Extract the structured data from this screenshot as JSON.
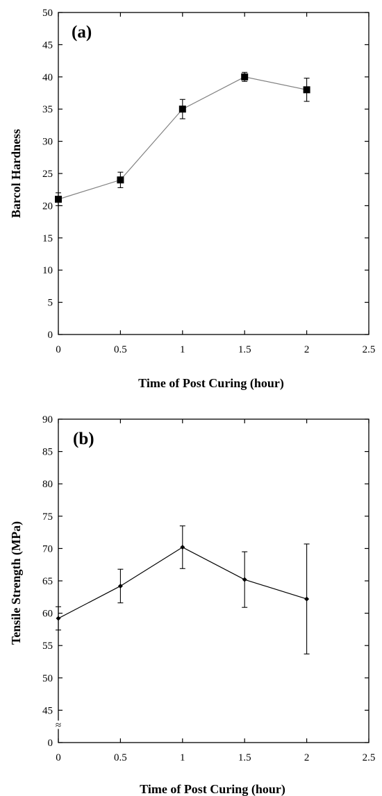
{
  "chart_data": [
    {
      "type": "line",
      "panel_label": "(a)",
      "xlabel": "Time of Post Curing (hour)",
      "ylabel": "Barcol Hardness",
      "xlim": [
        0,
        2.5
      ],
      "ylim": [
        0,
        50
      ],
      "x_ticks": [
        "0",
        "0.5",
        "1",
        "1.5",
        "2",
        "2.5"
      ],
      "y_ticks": [
        "0",
        "5",
        "10",
        "15",
        "20",
        "25",
        "30",
        "35",
        "40",
        "45",
        "50"
      ],
      "grid": false,
      "marker": "square",
      "line_color": "#808080",
      "marker_color": "#000000",
      "series": [
        {
          "x": [
            0,
            0.5,
            1,
            1.5,
            2
          ],
          "y": [
            21,
            24,
            35,
            40,
            38
          ],
          "err": [
            1.0,
            1.2,
            1.5,
            0.7,
            1.8
          ]
        }
      ]
    },
    {
      "type": "line",
      "panel_label": "(b)",
      "xlabel": "Time of Post Curing (hour)",
      "ylabel": "Tensile Strength (MPa)",
      "xlim": [
        0,
        2.5
      ],
      "ylim": [
        40,
        90
      ],
      "axis_break": "≈",
      "x_ticks": [
        "0",
        "0.5",
        "1",
        "1.5",
        "2",
        "2.5"
      ],
      "y_ticks": [
        "0",
        "45",
        "50",
        "55",
        "60",
        "65",
        "70",
        "75",
        "80",
        "85",
        "90"
      ],
      "grid": false,
      "marker": "diamond",
      "line_color": "#000000",
      "marker_color": "#000000",
      "series": [
        {
          "x": [
            0,
            0.5,
            1,
            1.5,
            2
          ],
          "y": [
            59.2,
            64.2,
            70.2,
            65.2,
            62.2
          ],
          "err": [
            1.8,
            2.6,
            3.3,
            4.3,
            8.5
          ]
        }
      ]
    }
  ]
}
